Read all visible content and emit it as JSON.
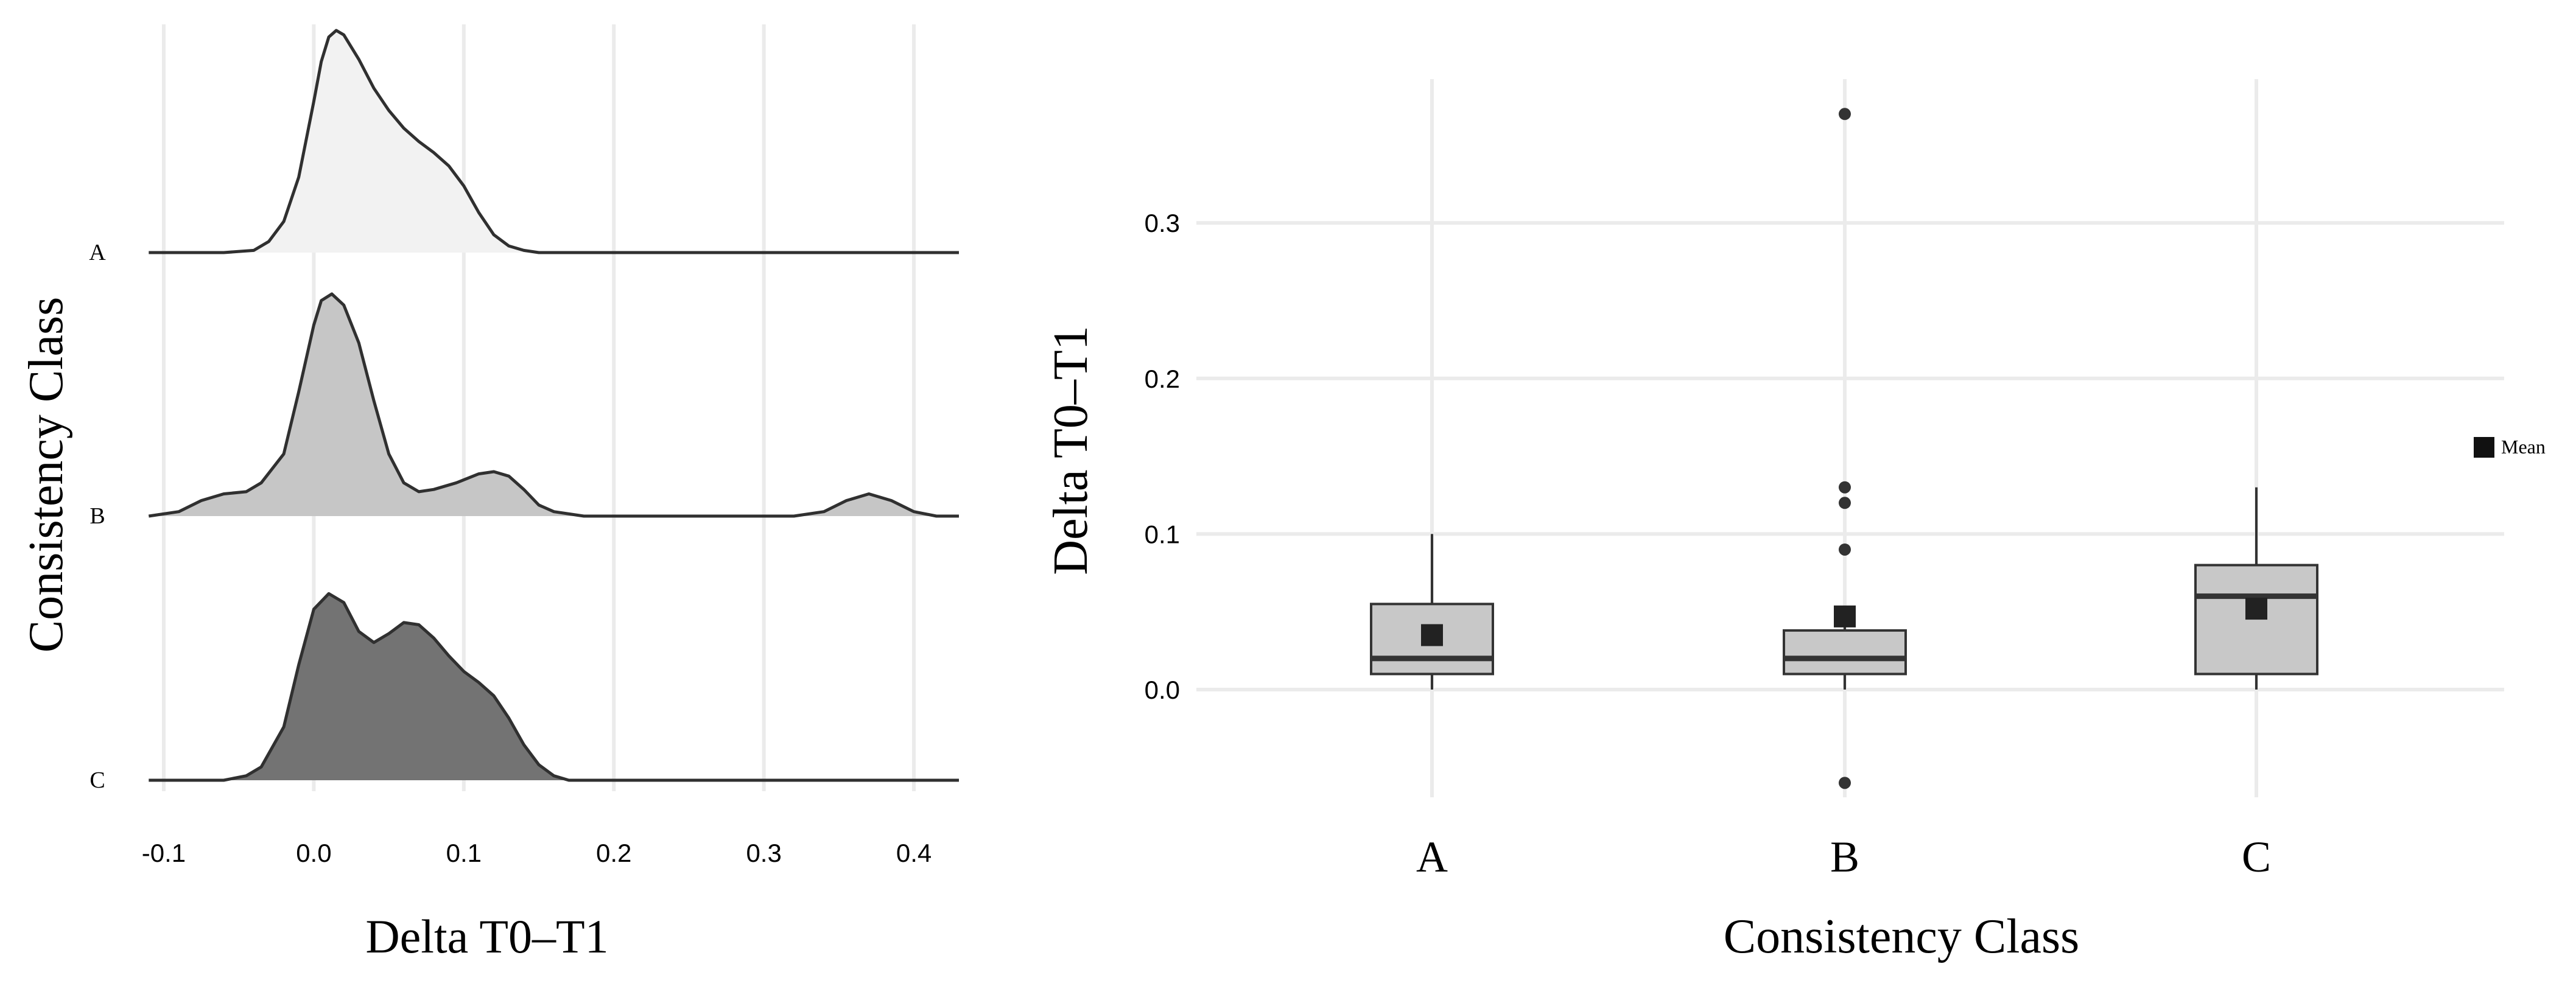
{
  "chart_data": [
    {
      "type": "area",
      "subtype": "ridgeline-density",
      "title": "",
      "xlabel": "Delta T0–T1",
      "ylabel": "Consistency Class",
      "xlim": [
        -0.115,
        0.43
      ],
      "xticks": [
        -0.1,
        0.0,
        0.1,
        0.2,
        0.3,
        0.4
      ],
      "xtick_labels": [
        "-0.1",
        "0.0",
        "0.1",
        "0.2",
        "0.3",
        "0.4"
      ],
      "grid": true,
      "legend": "none",
      "series": [
        {
          "name": "A",
          "color": "#f2f2f2",
          "points": [
            [
              -0.11,
              0
            ],
            [
              -0.06,
              0
            ],
            [
              -0.04,
              0.01
            ],
            [
              -0.03,
              0.05
            ],
            [
              -0.02,
              0.14
            ],
            [
              -0.01,
              0.34
            ],
            [
              0.0,
              0.68
            ],
            [
              0.005,
              0.86
            ],
            [
              0.01,
              0.97
            ],
            [
              0.015,
              1.0
            ],
            [
              0.02,
              0.98
            ],
            [
              0.03,
              0.87
            ],
            [
              0.04,
              0.74
            ],
            [
              0.05,
              0.64
            ],
            [
              0.06,
              0.56
            ],
            [
              0.07,
              0.5
            ],
            [
              0.08,
              0.45
            ],
            [
              0.09,
              0.39
            ],
            [
              0.1,
              0.3
            ],
            [
              0.11,
              0.18
            ],
            [
              0.12,
              0.08
            ],
            [
              0.13,
              0.03
            ],
            [
              0.14,
              0.01
            ],
            [
              0.15,
              0
            ],
            [
              0.43,
              0
            ]
          ]
        },
        {
          "name": "B",
          "color": "#c6c6c6",
          "points": [
            [
              -0.11,
              0
            ],
            [
              -0.09,
              0.02
            ],
            [
              -0.075,
              0.07
            ],
            [
              -0.06,
              0.1
            ],
            [
              -0.045,
              0.11
            ],
            [
              -0.035,
              0.15
            ],
            [
              -0.02,
              0.28
            ],
            [
              -0.01,
              0.56
            ],
            [
              0.0,
              0.86
            ],
            [
              0.005,
              0.97
            ],
            [
              0.012,
              1.0
            ],
            [
              0.02,
              0.95
            ],
            [
              0.03,
              0.78
            ],
            [
              0.04,
              0.52
            ],
            [
              0.05,
              0.28
            ],
            [
              0.06,
              0.15
            ],
            [
              0.07,
              0.11
            ],
            [
              0.08,
              0.12
            ],
            [
              0.095,
              0.15
            ],
            [
              0.11,
              0.19
            ],
            [
              0.12,
              0.2
            ],
            [
              0.13,
              0.18
            ],
            [
              0.14,
              0.12
            ],
            [
              0.15,
              0.05
            ],
            [
              0.16,
              0.02
            ],
            [
              0.18,
              0
            ],
            [
              0.32,
              0
            ],
            [
              0.34,
              0.02
            ],
            [
              0.355,
              0.07
            ],
            [
              0.37,
              0.1
            ],
            [
              0.385,
              0.07
            ],
            [
              0.4,
              0.02
            ],
            [
              0.415,
              0
            ],
            [
              0.43,
              0
            ]
          ]
        },
        {
          "name": "C",
          "color": "#737373",
          "points": [
            [
              -0.11,
              0
            ],
            [
              -0.06,
              0
            ],
            [
              -0.045,
              0.02
            ],
            [
              -0.035,
              0.06
            ],
            [
              -0.02,
              0.24
            ],
            [
              -0.01,
              0.52
            ],
            [
              0.0,
              0.77
            ],
            [
              0.01,
              0.84
            ],
            [
              0.02,
              0.8
            ],
            [
              0.03,
              0.67
            ],
            [
              0.04,
              0.62
            ],
            [
              0.05,
              0.66
            ],
            [
              0.06,
              0.71
            ],
            [
              0.07,
              0.7
            ],
            [
              0.08,
              0.64
            ],
            [
              0.09,
              0.56
            ],
            [
              0.1,
              0.49
            ],
            [
              0.11,
              0.44
            ],
            [
              0.12,
              0.38
            ],
            [
              0.13,
              0.28
            ],
            [
              0.14,
              0.16
            ],
            [
              0.15,
              0.07
            ],
            [
              0.16,
              0.02
            ],
            [
              0.17,
              0
            ],
            [
              0.43,
              0
            ]
          ]
        }
      ]
    },
    {
      "type": "box",
      "title": "",
      "xlabel": "Consistency Class",
      "ylabel": "Delta T0–T1",
      "ylim": [
        -0.07,
        0.39
      ],
      "yticks": [
        0.0,
        0.1,
        0.2,
        0.3
      ],
      "ytick_labels": [
        "0.0",
        "0.1",
        "0.2",
        "0.3"
      ],
      "grid": true,
      "legend": "right",
      "legend_entries": [
        {
          "label": "Mean",
          "symbol": "square",
          "color": "#111111"
        }
      ],
      "box_color": "#c8c8c8",
      "categories": [
        "A",
        "B",
        "C"
      ],
      "boxes": [
        {
          "category": "A",
          "min": 0.0,
          "q1": 0.01,
          "median": 0.02,
          "q3": 0.055,
          "max": 0.1,
          "mean": 0.035,
          "outliers": []
        },
        {
          "category": "B",
          "min": 0.0,
          "q1": 0.01,
          "median": 0.02,
          "q3": 0.038,
          "max": 0.045,
          "mean": 0.047,
          "outliers": [
            0.37,
            0.13,
            0.12,
            0.09,
            -0.06
          ]
        },
        {
          "category": "C",
          "min": 0.0,
          "q1": 0.01,
          "median": 0.06,
          "q3": 0.08,
          "max": 0.13,
          "mean": 0.052,
          "outliers": []
        }
      ]
    }
  ]
}
